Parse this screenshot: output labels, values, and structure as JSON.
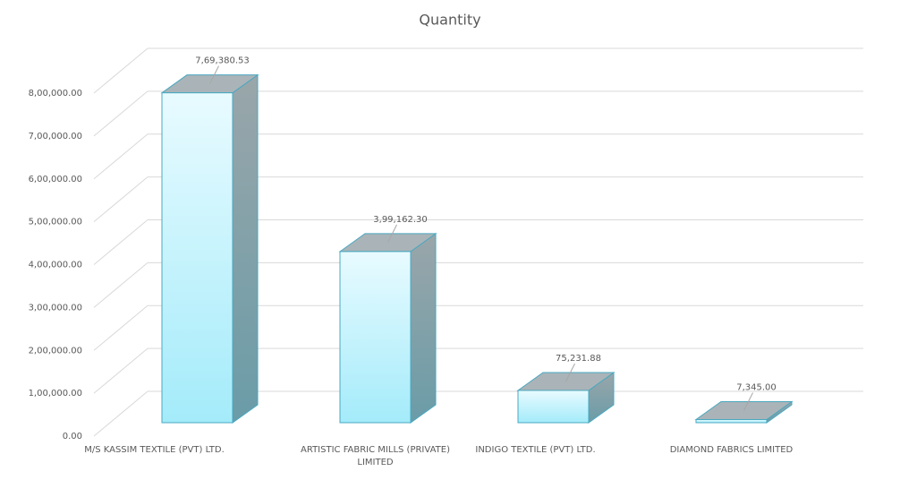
{
  "chart_data": {
    "type": "bar3d",
    "title": "Quantity",
    "categories": [
      "M/S KASSIM TEXTILE (PVT) LTD.",
      "ARTISTIC FABRIC MILLS (PRIVATE) LIMITED",
      "INDIGO TEXTILE (PVT) LTD.",
      "DIAMOND FABRICS LIMITED"
    ],
    "values": [
      769380.53,
      399162.3,
      75231.88,
      7345.0
    ],
    "value_labels": [
      "7,69,380.53",
      "3,99,162.30",
      "75,231.88",
      "7,345.00"
    ],
    "ylim": [
      0,
      800000
    ],
    "yticks": [
      {
        "value": 0,
        "label": "0.00"
      },
      {
        "value": 100000,
        "label": "1,00,000.00"
      },
      {
        "value": 200000,
        "label": "2,00,000.00"
      },
      {
        "value": 300000,
        "label": "3,00,000.00"
      },
      {
        "value": 400000,
        "label": "4,00,000.00"
      },
      {
        "value": 500000,
        "label": "5,00,000.00"
      },
      {
        "value": 600000,
        "label": "6,00,000.00"
      },
      {
        "value": 700000,
        "label": "7,00,000.00"
      },
      {
        "value": 800000,
        "label": "8,00,000.00"
      }
    ],
    "grid": true
  }
}
